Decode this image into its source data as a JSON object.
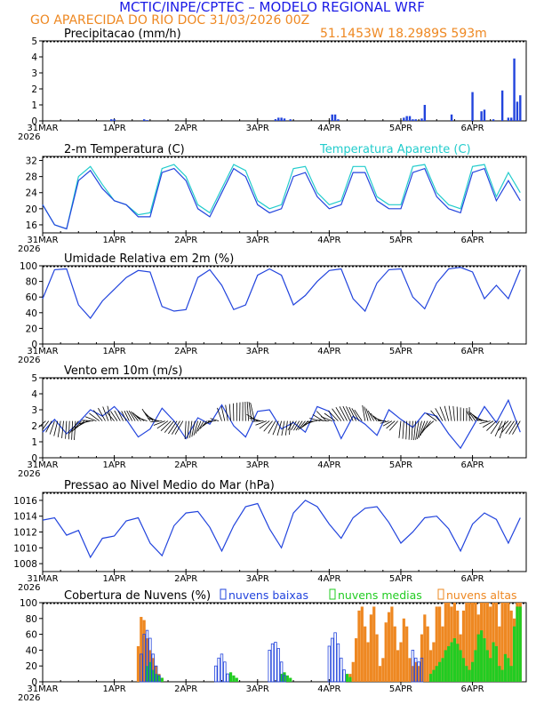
{
  "header": {
    "title": "MCTIC/INPE/CPTEC – MODELO REGIONAL WRF",
    "location_line": "GO APARECIDA DO RIO DOC    31/03/2026 00Z",
    "coords": "51.1453W 18.2989S 593m"
  },
  "colors": {
    "title": "#1a1ae6",
    "orange": "#ee8822",
    "line": "#2244dd",
    "cyan": "#22cccc",
    "green": "#22cc22",
    "axis": "#000000"
  },
  "x_axis": {
    "ticks": [
      "31MAR",
      "1APR",
      "2APR",
      "3APR",
      "4APR",
      "5APR",
      "6APR"
    ],
    "year": "2026"
  },
  "chart_data": [
    {
      "id": "precip",
      "type": "bar",
      "title": "Precipitacao (mm/h)",
      "ylim": [
        0,
        5
      ],
      "yticks": [
        "0",
        "1",
        "2",
        "3",
        "4",
        "5"
      ],
      "x_hours": [
        23,
        24,
        34,
        35,
        78,
        79,
        80,
        81,
        83,
        97,
        98,
        99,
        121,
        122,
        123,
        124,
        125,
        127,
        128,
        137,
        144,
        147,
        148,
        151,
        154,
        156,
        157,
        158,
        159,
        160
      ],
      "values": [
        0.1,
        0.1,
        0.1,
        0.05,
        0.1,
        0.2,
        0.2,
        0.15,
        0.1,
        0.4,
        0.4,
        0.1,
        0.2,
        0.3,
        0.3,
        0.1,
        0.1,
        0.15,
        1.0,
        0.4,
        1.8,
        0.6,
        0.7,
        0.1,
        1.9,
        0.2,
        0.2,
        3.9,
        1.2,
        1.6
      ]
    },
    {
      "id": "temp",
      "type": "line",
      "title": "2-m Temperatura (C)",
      "legend": "Temperatura Aparente (C)",
      "ylim": [
        14,
        33
      ],
      "yticks": [
        "16",
        "20",
        "24",
        "28",
        "32"
      ],
      "ytick_values": [
        16,
        20,
        24,
        28,
        32
      ],
      "series": [
        {
          "name": "Temperatura",
          "x_hours": [
            0,
            4,
            8,
            12,
            16,
            20,
            24,
            28,
            32,
            36,
            40,
            44,
            48,
            52,
            56,
            60,
            64,
            68,
            72,
            76,
            80,
            84,
            88,
            92,
            96,
            100,
            104,
            108,
            112,
            116,
            120,
            124,
            128,
            132,
            136,
            140,
            144,
            148,
            152,
            156,
            160
          ],
          "values": [
            21,
            16,
            15,
            27,
            29.5,
            25,
            22,
            21,
            18,
            18,
            29,
            30,
            27,
            20,
            18,
            24,
            30,
            28,
            21,
            19,
            20,
            28,
            29,
            23,
            20,
            21,
            29,
            29,
            22,
            20,
            20,
            29,
            30,
            23,
            20,
            19,
            29,
            30,
            22,
            27,
            22
          ]
        },
        {
          "name": "Temperatura Aparente",
          "x_hours": [
            0,
            4,
            8,
            12,
            16,
            20,
            24,
            28,
            32,
            36,
            40,
            44,
            48,
            52,
            56,
            60,
            64,
            68,
            72,
            76,
            80,
            84,
            88,
            92,
            96,
            100,
            104,
            108,
            112,
            116,
            120,
            124,
            128,
            132,
            136,
            140,
            144,
            148,
            152,
            156,
            160
          ],
          "values": [
            21,
            16,
            15,
            28,
            30.5,
            26,
            22,
            21,
            18.5,
            19,
            30,
            31,
            28,
            21,
            19,
            25,
            31,
            29.5,
            22,
            20,
            21,
            30,
            30.5,
            24,
            21,
            22,
            30.5,
            30.5,
            23,
            21,
            21,
            30.5,
            31,
            24,
            21,
            20,
            30.5,
            31,
            23,
            29,
            24
          ]
        }
      ]
    },
    {
      "id": "rh",
      "type": "line",
      "title": "Umidade Relativa em 2m (%)",
      "ylim": [
        0,
        100
      ],
      "yticks": [
        "0",
        "20",
        "40",
        "60",
        "80",
        "100"
      ],
      "ytick_values": [
        0,
        20,
        40,
        60,
        80,
        100
      ],
      "x_hours": [
        0,
        4,
        8,
        12,
        16,
        20,
        24,
        28,
        32,
        36,
        40,
        44,
        48,
        52,
        56,
        60,
        64,
        68,
        72,
        76,
        80,
        84,
        88,
        92,
        96,
        100,
        104,
        108,
        112,
        116,
        120,
        124,
        128,
        132,
        136,
        140,
        144,
        148,
        152,
        156,
        160
      ],
      "values": [
        58,
        95,
        96,
        50,
        33,
        55,
        70,
        85,
        94,
        92,
        48,
        42,
        44,
        85,
        95,
        75,
        44,
        50,
        88,
        96,
        88,
        50,
        62,
        80,
        94,
        96,
        58,
        42,
        78,
        95,
        96,
        60,
        45,
        78,
        96,
        98,
        92,
        58,
        75,
        58,
        95
      ]
    },
    {
      "id": "wind",
      "type": "line",
      "title": "Vento em 10m (m/s)",
      "ylim": [
        0,
        5
      ],
      "yticks": [
        "0",
        "1",
        "2",
        "3",
        "4",
        "5"
      ],
      "ytick_values": [
        0,
        1,
        2,
        3,
        4,
        5
      ],
      "x_hours": [
        0,
        4,
        8,
        12,
        16,
        20,
        24,
        28,
        32,
        36,
        40,
        44,
        48,
        52,
        56,
        60,
        64,
        68,
        72,
        76,
        80,
        84,
        88,
        92,
        96,
        100,
        104,
        108,
        112,
        116,
        120,
        124,
        128,
        132,
        136,
        140,
        144,
        148,
        152,
        156,
        160
      ],
      "values": [
        1.6,
        2.4,
        1.5,
        2.2,
        3.0,
        2.6,
        3.2,
        2.4,
        1.3,
        1.8,
        3.1,
        2.3,
        1.2,
        2.5,
        2.1,
        3.3,
        2.0,
        1.3,
        2.9,
        3.0,
        1.8,
        2.2,
        1.6,
        3.2,
        2.9,
        1.2,
        2.6,
        2.1,
        1.4,
        3.0,
        2.4,
        1.9,
        2.8,
        2.6,
        1.5,
        0.6,
        1.9,
        3.2,
        2.2,
        3.6,
        1.6
      ]
    },
    {
      "id": "pressure",
      "type": "line",
      "title": "Pressao ao Nivel Medio do Mar (hPa)",
      "ylim": [
        1007,
        1017
      ],
      "yticks": [
        "1008",
        "1010",
        "1012",
        "1014",
        "1016"
      ],
      "ytick_values": [
        1008,
        1010,
        1012,
        1014,
        1016
      ],
      "x_hours": [
        0,
        4,
        8,
        12,
        16,
        20,
        24,
        28,
        32,
        36,
        40,
        44,
        48,
        52,
        56,
        60,
        64,
        68,
        72,
        76,
        80,
        84,
        88,
        92,
        96,
        100,
        104,
        108,
        112,
        116,
        120,
        124,
        128,
        132,
        136,
        140,
        144,
        148,
        152,
        156,
        160
      ],
      "values": [
        1013.5,
        1013.8,
        1011.6,
        1012.2,
        1008.8,
        1011.2,
        1011.5,
        1013.4,
        1013.8,
        1010.6,
        1009.0,
        1012.8,
        1014.4,
        1014.6,
        1012.6,
        1009.6,
        1012.8,
        1015.2,
        1015.6,
        1012.4,
        1010.0,
        1014.4,
        1016.0,
        1015.2,
        1013.0,
        1011.2,
        1013.8,
        1015.0,
        1015.2,
        1013.2,
        1010.6,
        1012.0,
        1013.8,
        1014.0,
        1012.4,
        1009.6,
        1013.0,
        1014.4,
        1013.6,
        1010.6,
        1013.8
      ]
    },
    {
      "id": "clouds",
      "type": "bar",
      "title": "Cobertura de Nuvens (%)",
      "ylim": [
        0,
        100
      ],
      "yticks": [
        "0",
        "20",
        "40",
        "60",
        "80",
        "100"
      ],
      "ytick_values": [
        0,
        20,
        40,
        60,
        80,
        100
      ],
      "legend": [
        "nuvens baixas",
        "nuvens medias",
        "nuvens altas"
      ],
      "series": [
        {
          "name": "nuvens baixas",
          "x_hours": [
            33,
            34,
            35,
            36,
            37,
            38,
            39,
            58,
            59,
            60,
            61,
            62,
            76,
            77,
            78,
            79,
            80,
            81,
            96,
            97,
            98,
            99,
            100,
            101,
            124,
            125,
            126,
            127
          ],
          "values": [
            35,
            60,
            65,
            55,
            35,
            20,
            8,
            20,
            30,
            35,
            25,
            10,
            40,
            48,
            50,
            42,
            25,
            8,
            45,
            55,
            62,
            48,
            30,
            15,
            40,
            30,
            25,
            30
          ]
        },
        {
          "name": "nuvens medias",
          "x_hours": [
            35,
            36,
            37,
            38,
            39,
            40,
            63,
            64,
            65,
            80,
            81,
            82,
            83,
            102,
            103,
            130,
            131,
            132,
            133,
            134,
            135,
            136,
            137,
            138,
            139,
            140,
            141,
            142,
            143,
            144,
            145,
            146,
            147,
            148,
            149,
            150,
            151,
            152,
            153,
            154,
            155,
            156,
            157,
            158,
            159,
            160
          ],
          "values": [
            20,
            25,
            15,
            10,
            8,
            5,
            12,
            8,
            5,
            10,
            12,
            8,
            5,
            10,
            6,
            10,
            15,
            20,
            25,
            30,
            40,
            45,
            50,
            55,
            48,
            40,
            30,
            20,
            15,
            25,
            40,
            60,
            65,
            55,
            40,
            30,
            50,
            45,
            20,
            15,
            35,
            30,
            20,
            70,
            95,
            95
          ]
        },
        {
          "name": "nuvens altas",
          "x_hours": [
            32,
            33,
            34,
            35,
            36,
            37,
            38,
            39,
            40,
            103,
            104,
            105,
            106,
            107,
            108,
            109,
            110,
            111,
            112,
            113,
            114,
            115,
            116,
            117,
            118,
            119,
            120,
            121,
            122,
            123,
            124,
            125,
            126,
            127,
            128,
            129,
            130,
            131,
            132,
            133,
            134,
            135,
            136,
            137,
            138,
            139,
            140,
            141,
            142,
            143,
            144,
            145,
            146,
            147,
            148,
            149,
            150,
            151,
            152,
            153,
            154,
            155,
            156,
            157,
            158,
            159,
            160
          ],
          "values": [
            45,
            82,
            78,
            55,
            40,
            30,
            20,
            10,
            5,
            10,
            25,
            55,
            90,
            95,
            70,
            50,
            85,
            95,
            60,
            20,
            30,
            75,
            88,
            95,
            70,
            40,
            50,
            80,
            70,
            30,
            20,
            25,
            20,
            60,
            85,
            70,
            40,
            50,
            95,
            95,
            70,
            100,
            100,
            95,
            100,
            90,
            60,
            90,
            100,
            100,
            100,
            100,
            85,
            100,
            100,
            100,
            95,
            100,
            100,
            70,
            100,
            100,
            100,
            90,
            80,
            100,
            100
          ]
        }
      ]
    }
  ]
}
